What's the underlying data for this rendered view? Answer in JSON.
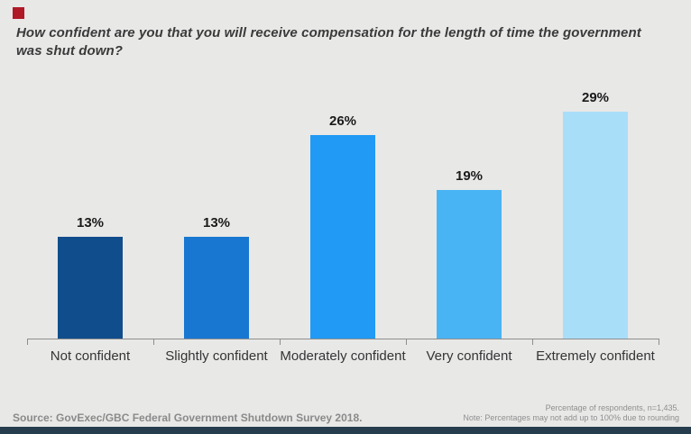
{
  "meta": {
    "background_color": "#e8e8e7",
    "brand_red": "#b01926",
    "footer_bar_color": "#253d4d",
    "axis_color": "#8e8e8e"
  },
  "title": {
    "text": "How confident are you that you will receive compensation for the length of time the government\nwas shut down?"
  },
  "chart_data": {
    "type": "bar",
    "title": "How confident are you that you will receive compensation for the length of time the government was shut down?",
    "categories": [
      "Not confident",
      "Slightly confident",
      "Moderately confident",
      "Very confident",
      "Extremely confident"
    ],
    "values": [
      13,
      13,
      26,
      19,
      29
    ],
    "value_labels": [
      "13%",
      "13%",
      "26%",
      "19%",
      "29%"
    ],
    "bar_colors": [
      "#104d8c",
      "#1877d1",
      "#209af4",
      "#49b4f4",
      "#a9def9"
    ],
    "xlabel": "",
    "ylabel": "",
    "ylim": [
      0,
      32
    ],
    "grid": false,
    "legend": false,
    "unit": "percent of respondents"
  },
  "footer": {
    "source": "Source: GovExec/GBC Federal Government Shutdown Survey 2018.",
    "note_line1": "Percentage of respondents, n=1,435.",
    "note_line2": "Note: Percentages may not add up to 100% due to rounding"
  }
}
